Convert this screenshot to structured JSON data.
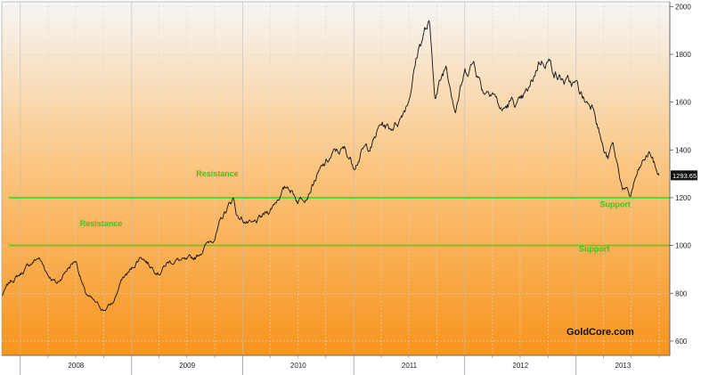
{
  "chart_data": {
    "type": "line",
    "title": "",
    "xlabel": "",
    "ylabel": "",
    "ylim": [
      540,
      2020
    ],
    "y_ticks": [
      600,
      800,
      1000,
      1200,
      1400,
      1600,
      1800,
      2000
    ],
    "x_ticks": [
      "2008",
      "2009",
      "2010",
      "2011",
      "2012",
      "2013"
    ],
    "grid": true,
    "series": [
      {
        "color": "#111111",
        "points": [
          [
            "2007-11-01",
            790
          ],
          [
            "2007-12-01",
            850
          ],
          [
            "2008-01-01",
            880
          ],
          [
            "2008-02-01",
            920
          ],
          [
            "2008-03-01",
            950
          ],
          [
            "2008-04-01",
            880
          ],
          [
            "2008-05-01",
            840
          ],
          [
            "2008-06-01",
            900
          ],
          [
            "2008-07-01",
            940
          ],
          [
            "2008-08-01",
            800
          ],
          [
            "2008-09-01",
            760
          ],
          [
            "2008-10-01",
            730
          ],
          [
            "2008-11-01",
            760
          ],
          [
            "2008-12-01",
            860
          ],
          [
            "2009-01-01",
            900
          ],
          [
            "2009-02-01",
            960
          ],
          [
            "2009-03-01",
            920
          ],
          [
            "2009-04-01",
            890
          ],
          [
            "2009-05-01",
            930
          ],
          [
            "2009-06-01",
            940
          ],
          [
            "2009-07-01",
            930
          ],
          [
            "2009-08-01",
            950
          ],
          [
            "2009-09-01",
            1000
          ],
          [
            "2009-10-01",
            1040
          ],
          [
            "2009-11-01",
            1130
          ],
          [
            "2009-12-01",
            1200
          ],
          [
            "2009-12-15",
            1120
          ],
          [
            "2010-01-01",
            1110
          ],
          [
            "2010-02-01",
            1080
          ],
          [
            "2010-03-01",
            1110
          ],
          [
            "2010-04-01",
            1150
          ],
          [
            "2010-05-01",
            1210
          ],
          [
            "2010-06-01",
            1250
          ],
          [
            "2010-07-01",
            1190
          ],
          [
            "2010-08-01",
            1220
          ],
          [
            "2010-09-01",
            1290
          ],
          [
            "2010-10-01",
            1340
          ],
          [
            "2010-11-01",
            1390
          ],
          [
            "2010-12-01",
            1400
          ],
          [
            "2011-01-01",
            1340
          ],
          [
            "2011-02-01",
            1400
          ],
          [
            "2011-03-01",
            1420
          ],
          [
            "2011-04-01",
            1510
          ],
          [
            "2011-05-01",
            1490
          ],
          [
            "2011-06-01",
            1530
          ],
          [
            "2011-07-01",
            1620
          ],
          [
            "2011-08-01",
            1820
          ],
          [
            "2011-08-22",
            1900
          ],
          [
            "2011-09-06",
            1920
          ],
          [
            "2011-09-26",
            1620
          ],
          [
            "2011-10-01",
            1640
          ],
          [
            "2011-11-01",
            1760
          ],
          [
            "2011-12-01",
            1580
          ],
          [
            "2012-01-01",
            1720
          ],
          [
            "2012-02-01",
            1770
          ],
          [
            "2012-03-01",
            1650
          ],
          [
            "2012-04-01",
            1660
          ],
          [
            "2012-05-01",
            1560
          ],
          [
            "2012-06-01",
            1600
          ],
          [
            "2012-07-01",
            1590
          ],
          [
            "2012-08-01",
            1650
          ],
          [
            "2012-09-01",
            1770
          ],
          [
            "2012-10-01",
            1780
          ],
          [
            "2012-11-01",
            1710
          ],
          [
            "2012-12-01",
            1680
          ],
          [
            "2013-01-01",
            1670
          ],
          [
            "2013-02-01",
            1600
          ],
          [
            "2013-03-01",
            1590
          ],
          [
            "2013-04-01",
            1400
          ],
          [
            "2013-04-15",
            1360
          ],
          [
            "2013-05-01",
            1420
          ],
          [
            "2013-06-01",
            1250
          ],
          [
            "2013-06-28",
            1200
          ],
          [
            "2013-07-15",
            1280
          ],
          [
            "2013-08-15",
            1360
          ],
          [
            "2013-09-01",
            1390
          ],
          [
            "2013-09-20",
            1320
          ],
          [
            "2013-10-01",
            1294
          ]
        ]
      }
    ],
    "levels": [
      {
        "value": 1200,
        "color": "#33dd22"
      },
      {
        "value": 1000,
        "color": "#33dd22"
      }
    ],
    "annotations": [
      {
        "text": "Resistance",
        "x": "2009-08-01",
        "y": 1290,
        "color": "#2ecc1a"
      },
      {
        "text": "Resistance",
        "x": "2008-07-15",
        "y": 1080,
        "color": "#2ecc1a"
      },
      {
        "text": "Support",
        "x": "2013-03-20",
        "y": 1160,
        "color": "#2ecc1a"
      },
      {
        "text": "Support",
        "x": "2013-01-10",
        "y": 975,
        "color": "#2ecc1a"
      }
    ],
    "last_value_label": "1293.65",
    "last_value_color": "#111111",
    "watermark": "GoldCore.com",
    "background_top": "#f6f6f6",
    "background_bottom": "#f7941d"
  }
}
